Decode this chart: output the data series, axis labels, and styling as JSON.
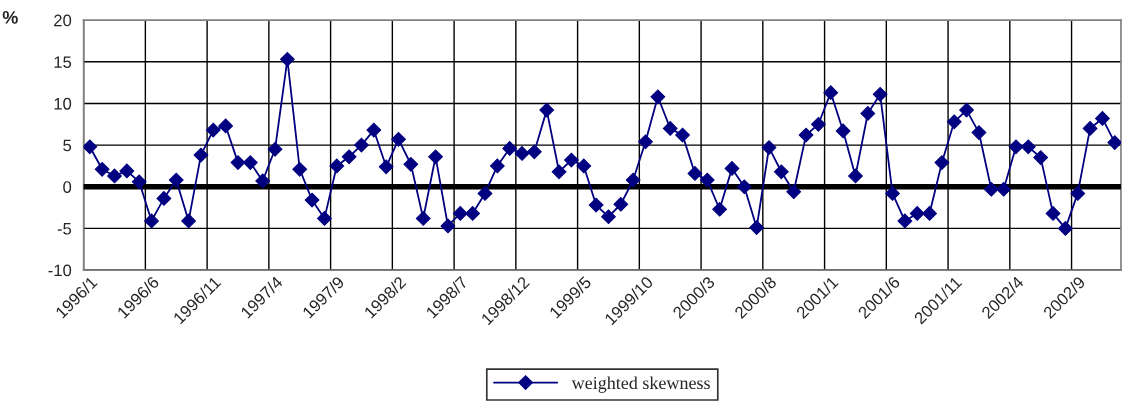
{
  "chart_data": {
    "type": "line",
    "ylabel": "%",
    "categories": [
      "1996/1",
      null,
      null,
      null,
      null,
      "1996/6",
      null,
      null,
      null,
      null,
      "1996/11",
      null,
      null,
      null,
      null,
      "1997/4",
      null,
      null,
      null,
      null,
      "1997/9",
      null,
      null,
      null,
      null,
      "1998/2",
      null,
      null,
      null,
      null,
      "1998/7",
      null,
      null,
      null,
      null,
      "1998/12",
      null,
      null,
      null,
      null,
      "1999/5",
      null,
      null,
      null,
      null,
      "1999/10",
      null,
      null,
      null,
      null,
      "2000/3",
      null,
      null,
      null,
      null,
      "2000/8",
      null,
      null,
      null,
      null,
      "2001/1",
      null,
      null,
      null,
      null,
      "2001/6",
      null,
      null,
      null,
      null,
      "2001/11",
      null,
      null,
      null,
      null,
      "2002/4",
      null,
      null,
      null,
      null,
      "2002/9",
      null,
      null,
      null
    ],
    "series": [
      {
        "name": "weighted skewness",
        "color": "#000080",
        "values": [
          4.8,
          2.1,
          1.3,
          1.9,
          0.6,
          -4.1,
          -1.4,
          0.8,
          -4.1,
          3.8,
          6.8,
          7.3,
          2.9,
          2.9,
          0.7,
          4.5,
          15.3,
          2.1,
          -1.6,
          -3.8,
          2.5,
          3.6,
          5.0,
          6.8,
          2.4,
          5.7,
          2.7,
          -3.8,
          3.6,
          -4.7,
          -3.2,
          -3.2,
          -0.8,
          2.5,
          4.6,
          4.0,
          4.2,
          9.2,
          1.8,
          3.2,
          2.5,
          -2.2,
          -3.6,
          -2.1,
          0.8,
          5.4,
          10.8,
          7.0,
          6.2,
          1.6,
          0.8,
          -2.7,
          2.2,
          0.0,
          -4.9,
          4.7,
          1.8,
          -0.6,
          6.2,
          7.5,
          11.3,
          6.7,
          1.3,
          8.8,
          11.1,
          -0.8,
          -4.1,
          -3.2,
          -3.2,
          2.9,
          7.8,
          9.2,
          6.5,
          -0.3,
          -0.3,
          4.8,
          4.8,
          3.5,
          -3.2,
          -5.0,
          -0.8,
          7.0,
          8.2,
          5.3
        ]
      }
    ],
    "ylim": [
      -10,
      20
    ],
    "yticks": [
      -10,
      -5,
      0,
      5,
      10,
      15,
      20
    ],
    "ref_lines": [
      {
        "axis": "y",
        "value": 0,
        "color": "#000000"
      }
    ],
    "grid": true,
    "legend": "bottom",
    "marker": "diamond",
    "line_style": "solid"
  }
}
